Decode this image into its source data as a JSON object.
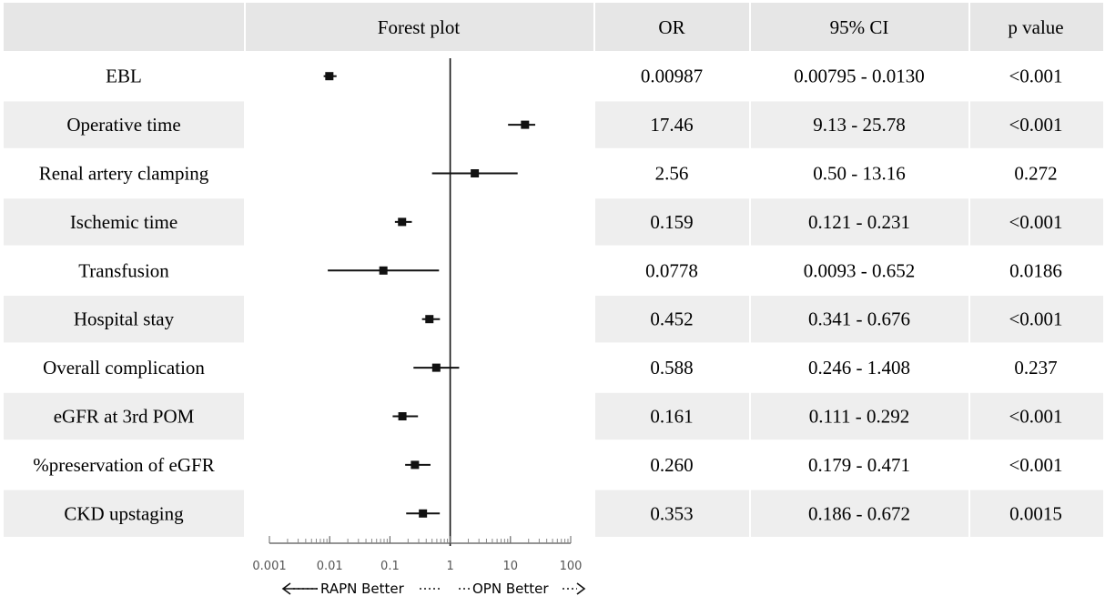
{
  "headers": {
    "plot": "Forest plot",
    "or": "OR",
    "ci": "95% CI",
    "p": "p value"
  },
  "axis": {
    "ticks": [
      {
        "value": 0.001,
        "label": "0.001"
      },
      {
        "value": 0.01,
        "label": "0.01"
      },
      {
        "value": 0.1,
        "label": "0.1"
      },
      {
        "value": 1,
        "label": "1"
      },
      {
        "value": 10,
        "label": "10"
      },
      {
        "value": 100,
        "label": "100"
      }
    ],
    "left_note": "RAPN Better",
    "right_note": "OPN Better"
  },
  "colors": {
    "header_bg": "#e6e6e6",
    "stripe_bg": "#eeeeee",
    "ink": "#111111"
  },
  "chart_data": {
    "type": "forest",
    "scale": "log",
    "xlim": [
      0.001,
      100
    ],
    "reference_line": 1,
    "rows": [
      {
        "label": "EBL",
        "or": 0.00987,
        "lo": 0.00795,
        "hi": 0.013,
        "or_text": "0.00987",
        "ci_text": "0.00795 - 0.0130",
        "p": "<0.001"
      },
      {
        "label": "Operative time",
        "or": 17.46,
        "lo": 9.13,
        "hi": 25.78,
        "or_text": "17.46",
        "ci_text": "9.13 - 25.78",
        "p": "<0.001"
      },
      {
        "label": "Renal artery clamping",
        "or": 2.56,
        "lo": 0.5,
        "hi": 13.16,
        "or_text": "2.56",
        "ci_text": "0.50 - 13.16",
        "p": "0.272"
      },
      {
        "label": "Ischemic time",
        "or": 0.159,
        "lo": 0.121,
        "hi": 0.231,
        "or_text": "0.159",
        "ci_text": "0.121 - 0.231",
        "p": "<0.001"
      },
      {
        "label": "Transfusion",
        "or": 0.0778,
        "lo": 0.0093,
        "hi": 0.652,
        "or_text": "0.0778",
        "ci_text": "0.0093 - 0.652",
        "p": "0.0186"
      },
      {
        "label": "Hospital stay",
        "or": 0.452,
        "lo": 0.341,
        "hi": 0.676,
        "or_text": "0.452",
        "ci_text": "0.341 - 0.676",
        "p": "<0.001"
      },
      {
        "label": "Overall complication",
        "or": 0.588,
        "lo": 0.246,
        "hi": 1.408,
        "or_text": "0.588",
        "ci_text": "0.246 - 1.408",
        "p": "0.237"
      },
      {
        "label": "eGFR at 3rd POM",
        "or": 0.161,
        "lo": 0.111,
        "hi": 0.292,
        "or_text": "0.161",
        "ci_text": "0.111 - 0.292",
        "p": "<0.001"
      },
      {
        "label": "%preservation of eGFR",
        "or": 0.26,
        "lo": 0.179,
        "hi": 0.471,
        "or_text": "0.260",
        "ci_text": "0.179 - 0.471",
        "p": "<0.001"
      },
      {
        "label": "CKD upstaging",
        "or": 0.353,
        "lo": 0.186,
        "hi": 0.672,
        "or_text": "0.353",
        "ci_text": "0.186 - 0.672",
        "p": "0.0015"
      }
    ]
  }
}
